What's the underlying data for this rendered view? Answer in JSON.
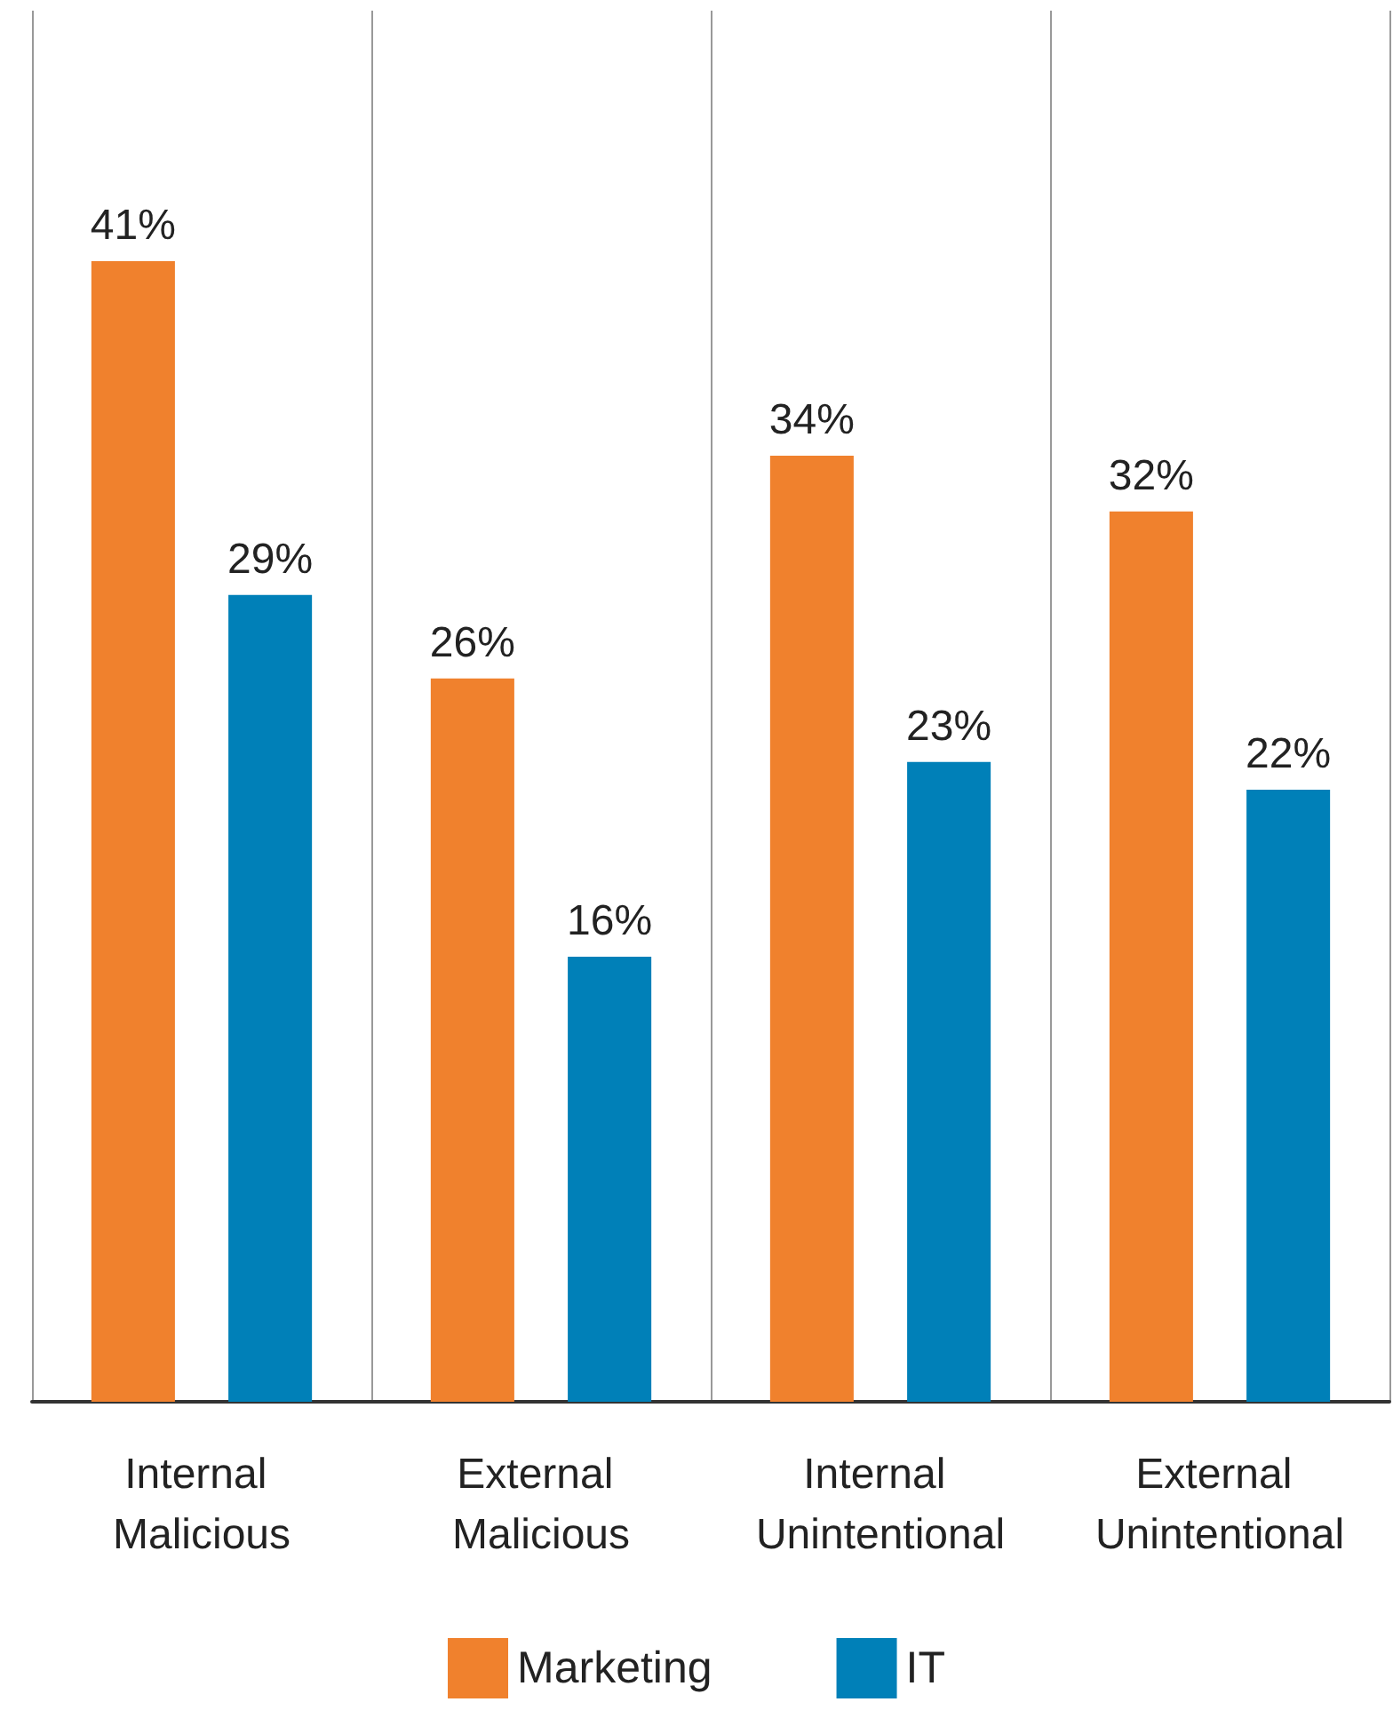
{
  "chart_data": {
    "type": "bar",
    "categories": [
      "Internal Malicious",
      "External Malicious",
      "Internal Unintentional",
      "External Unintentional"
    ],
    "series": [
      {
        "name": "Marketing",
        "color": "#f0812d",
        "values": [
          41,
          26,
          34,
          32
        ],
        "value_labels": [
          "41%",
          "26%",
          "34%",
          "32%"
        ]
      },
      {
        "name": "IT",
        "color": "#0080b8",
        "values": [
          29,
          16,
          23,
          22
        ],
        "value_labels": [
          "29%",
          "16%",
          "23%",
          "22%"
        ]
      }
    ],
    "grid": "x",
    "legend": "bottom"
  }
}
